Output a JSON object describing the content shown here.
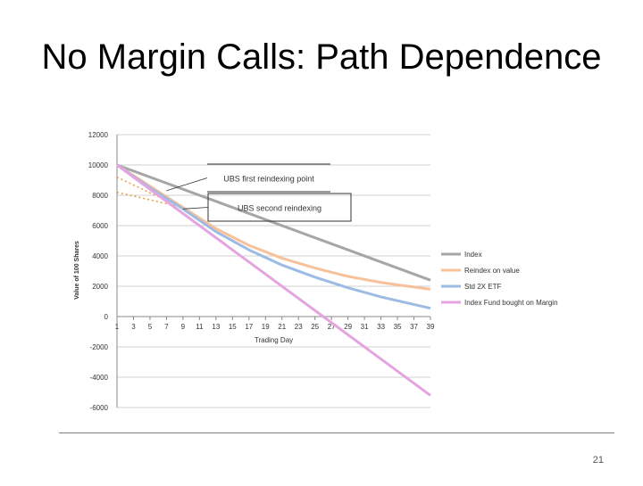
{
  "slide": {
    "title": "No Margin Calls:  Path Dependence",
    "page_number": "21"
  },
  "chart_data": {
    "type": "line",
    "xlabel": "Trading Day",
    "ylabel": "Value of 100 Shares",
    "xlim": [
      1,
      39
    ],
    "ylim": [
      -6000,
      12000
    ],
    "y_ticks": [
      12000,
      10000,
      8000,
      6000,
      4000,
      2000,
      0,
      -2000,
      -4000,
      -6000
    ],
    "x_ticks": [
      1,
      3,
      5,
      7,
      9,
      11,
      13,
      15,
      17,
      19,
      21,
      23,
      25,
      27,
      29,
      31,
      33,
      35,
      37,
      39
    ],
    "grid": "horizontal",
    "legend_position": "right",
    "series": [
      {
        "name": "Index",
        "color": "#a6a6a6",
        "x": [
          1,
          39
        ],
        "y": [
          10000,
          2400
        ]
      },
      {
        "name": "Reindex on value",
        "color": "#f7c19a",
        "x": [
          1,
          5,
          9,
          13,
          17,
          21,
          25,
          29,
          33,
          37,
          39
        ],
        "y": [
          10000,
          8600,
          7200,
          5800,
          4700,
          3850,
          3200,
          2650,
          2250,
          1950,
          1800
        ]
      },
      {
        "name": "Std 2X ETF",
        "color": "#9dbbe3",
        "x": [
          1,
          5,
          9,
          13,
          17,
          21,
          25,
          29,
          33,
          37,
          39
        ],
        "y": [
          10000,
          8500,
          7100,
          5600,
          4400,
          3400,
          2600,
          1900,
          1300,
          800,
          550
        ]
      },
      {
        "name": "Index Fund bought on Margin",
        "color": "#e3a4e0",
        "x": [
          1,
          39
        ],
        "y": [
          10000,
          -5200
        ]
      }
    ],
    "reference_lines": [
      {
        "color": "#e8a34f",
        "x": [
          1,
          6
        ],
        "y": [
          9200,
          7900
        ]
      },
      {
        "color": "#e8a34f",
        "x": [
          1,
          9
        ],
        "y": [
          8200,
          7200
        ]
      }
    ],
    "annotations": [
      {
        "text": "UBS first reindexing point",
        "x": 7,
        "y": 8300
      },
      {
        "text": "UBS second reindexing",
        "x": 9,
        "y": 7100
      }
    ]
  }
}
